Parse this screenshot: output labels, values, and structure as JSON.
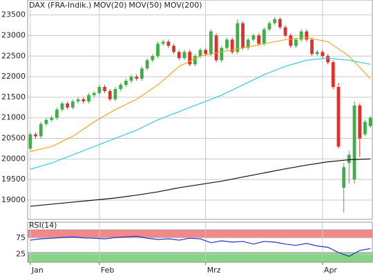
{
  "chart_data": [
    {
      "type": "candlestick",
      "xlim": [
        -0.5,
        64.5
      ],
      "xticks": [
        {
          "value": 0,
          "label": "Jan"
        },
        {
          "value": 13,
          "label": "Feb"
        },
        {
          "value": 33,
          "label": "Mrz"
        },
        {
          "value": 55,
          "label": "Apr"
        }
      ],
      "ylim": [
        18530,
        23830
      ],
      "yticks": [
        23500,
        23000,
        22500,
        22000,
        21500,
        21000,
        20500,
        20000,
        19500,
        19000
      ],
      "grid": true,
      "series": [
        {
          "name": "DAX (FRA-Indik.)",
          "color": "#e0302a",
          "up_color": "#3fae49",
          "down_color": "#e0302a",
          "open": [
            20250,
            20600,
            20550,
            20850,
            20950,
            21000,
            21200,
            21350,
            21250,
            21400,
            21450,
            21400,
            21550,
            21600,
            21750,
            21650,
            21450,
            21700,
            21800,
            21900,
            22000,
            21950,
            22200,
            22400,
            22500,
            22800,
            22850,
            22750,
            22600,
            22450,
            22600,
            22300,
            22500,
            22650,
            22550,
            23000,
            22400,
            22700,
            22900,
            22600,
            23300,
            22700,
            22900,
            23000,
            22800,
            23150,
            23300,
            23400,
            23200,
            23000,
            22750,
            22900,
            23100,
            22900,
            22550,
            22600,
            22500,
            22350,
            21750,
            19300,
            19900,
            19500,
            21300,
            20600,
            20800
          ],
          "high": [
            20650,
            20650,
            20900,
            21000,
            21050,
            21250,
            21400,
            21400,
            21450,
            21500,
            21500,
            21600,
            21650,
            21800,
            21800,
            21700,
            21750,
            21850,
            21950,
            22050,
            22050,
            22250,
            22450,
            22550,
            22850,
            22900,
            22900,
            22800,
            22650,
            22650,
            22650,
            22550,
            22700,
            22700,
            23150,
            23050,
            22750,
            22950,
            22950,
            23400,
            23350,
            22950,
            23050,
            23050,
            23200,
            23350,
            23450,
            23450,
            23250,
            23050,
            22950,
            23150,
            23150,
            22950,
            22650,
            22650,
            22550,
            22400,
            21850,
            19900,
            20200,
            21400,
            21350,
            20950,
            21050
          ],
          "low": [
            20200,
            20500,
            20500,
            20800,
            20900,
            20950,
            21150,
            21200,
            21200,
            21350,
            21350,
            21350,
            21500,
            21550,
            21600,
            21400,
            21400,
            21650,
            21750,
            21850,
            21900,
            21900,
            22150,
            22350,
            22450,
            22750,
            22700,
            22550,
            22400,
            22400,
            22250,
            22250,
            22450,
            22500,
            22500,
            22350,
            22350,
            22650,
            22550,
            22550,
            22650,
            22650,
            22850,
            22750,
            22750,
            23100,
            23250,
            23150,
            22950,
            22700,
            22700,
            22850,
            22850,
            22500,
            22500,
            22450,
            22300,
            21700,
            20250,
            18700,
            19400,
            19400,
            20050,
            20550,
            20750
          ],
          "close": [
            20600,
            20550,
            20850,
            20950,
            21000,
            21200,
            21350,
            21250,
            21400,
            21450,
            21400,
            21550,
            21600,
            21750,
            21650,
            21450,
            21700,
            21800,
            21900,
            22000,
            21950,
            22200,
            22400,
            22500,
            22800,
            22850,
            22750,
            22600,
            22450,
            22600,
            22300,
            22500,
            22650,
            22550,
            23100,
            22400,
            22700,
            22900,
            22600,
            23300,
            22700,
            22900,
            23000,
            22800,
            23150,
            23300,
            23400,
            23200,
            23000,
            22750,
            22900,
            23100,
            22900,
            22550,
            22600,
            22500,
            22350,
            21750,
            20300,
            19800,
            20100,
            21300,
            20500,
            20900,
            21000
          ]
        },
        {
          "name": "MOV(20)",
          "type": "line",
          "color": "#f5a623",
          "x": [
            0,
            4,
            8,
            12,
            16,
            20,
            24,
            28,
            32,
            36,
            40,
            44,
            48,
            52,
            56,
            60,
            64
          ],
          "values": [
            20180,
            20300,
            20550,
            20900,
            21200,
            21450,
            21800,
            22250,
            22500,
            22600,
            22700,
            22800,
            22900,
            22950,
            22850,
            22500,
            21950
          ]
        },
        {
          "name": "MOV(50)",
          "type": "line",
          "color": "#33cbe0",
          "x": [
            0,
            4,
            8,
            12,
            16,
            20,
            24,
            28,
            32,
            36,
            40,
            44,
            48,
            52,
            56,
            60,
            64
          ],
          "values": [
            19750,
            19900,
            20100,
            20300,
            20500,
            20700,
            20950,
            21150,
            21350,
            21550,
            21800,
            22050,
            22250,
            22400,
            22450,
            22400,
            22300
          ]
        },
        {
          "name": "MOV(200)",
          "type": "line",
          "color": "#111111",
          "x": [
            0,
            4,
            8,
            12,
            16,
            20,
            24,
            28,
            32,
            36,
            40,
            44,
            48,
            52,
            56,
            60,
            64
          ],
          "values": [
            18850,
            18900,
            18950,
            19000,
            19050,
            19120,
            19200,
            19300,
            19380,
            19460,
            19560,
            19660,
            19760,
            19850,
            19930,
            19980,
            20000
          ]
        }
      ]
    },
    {
      "type": "line",
      "xlim": [
        -0.5,
        64.5
      ],
      "ylim": [
        0,
        100
      ],
      "yticks": [
        75,
        25
      ],
      "zones": [
        {
          "from": 75,
          "to": 100,
          "color": "#f08a8a"
        },
        {
          "from": 0,
          "to": 30,
          "color": "#86d486"
        }
      ],
      "series": [
        {
          "name": "RSI(14)",
          "color": "#2233cc",
          "x": [
            0,
            2,
            4,
            6,
            8,
            10,
            12,
            14,
            16,
            18,
            20,
            22,
            24,
            26,
            28,
            30,
            32,
            34,
            36,
            38,
            40,
            42,
            44,
            46,
            48,
            50,
            52,
            54,
            56,
            58,
            60,
            62,
            64
          ],
          "values": [
            68,
            72,
            74,
            76,
            78,
            75,
            74,
            72,
            76,
            78,
            80,
            74,
            70,
            72,
            68,
            74,
            72,
            60,
            66,
            62,
            64,
            56,
            64,
            62,
            56,
            52,
            58,
            50,
            46,
            30,
            18,
            36,
            42
          ]
        }
      ]
    }
  ]
}
